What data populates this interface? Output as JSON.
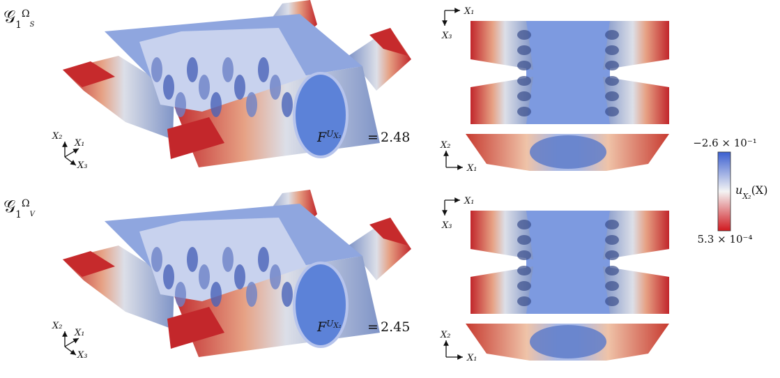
{
  "rows": [
    {
      "label": {
        "symbol": "𝒢",
        "subscript": "1",
        "superscript": "Ω",
        "superscript_subscript": "S"
      },
      "force": {
        "symbol": "F",
        "superscript": "U",
        "superscript_subscript": "X₂",
        "relation": "=",
        "value": 2.48
      },
      "perspective_axes": [
        "X₂",
        "X₁",
        "X₃"
      ],
      "top_view_axes": [
        "X₁",
        "X₃"
      ],
      "side_view_axes": [
        "X₂",
        "X₁"
      ]
    },
    {
      "label": {
        "symbol": "𝒢",
        "subscript": "1",
        "superscript": "Ω",
        "superscript_subscript": "V"
      },
      "force": {
        "symbol": "F",
        "superscript": "U",
        "superscript_subscript": "X₂",
        "relation": "=",
        "value": 2.45
      },
      "perspective_axes": [
        "X₂",
        "X₁",
        "X₃"
      ],
      "top_view_axes": [
        "X₁",
        "X₃"
      ],
      "side_view_axes": [
        "X₂",
        "X₁"
      ]
    }
  ],
  "colorbar": {
    "max_label": "−2.6 × 10⁻¹",
    "min_label": "5.3 × 10⁻⁴",
    "label": {
      "symbol": "u",
      "subscript": "X₂",
      "argument": "(X)"
    }
  }
}
